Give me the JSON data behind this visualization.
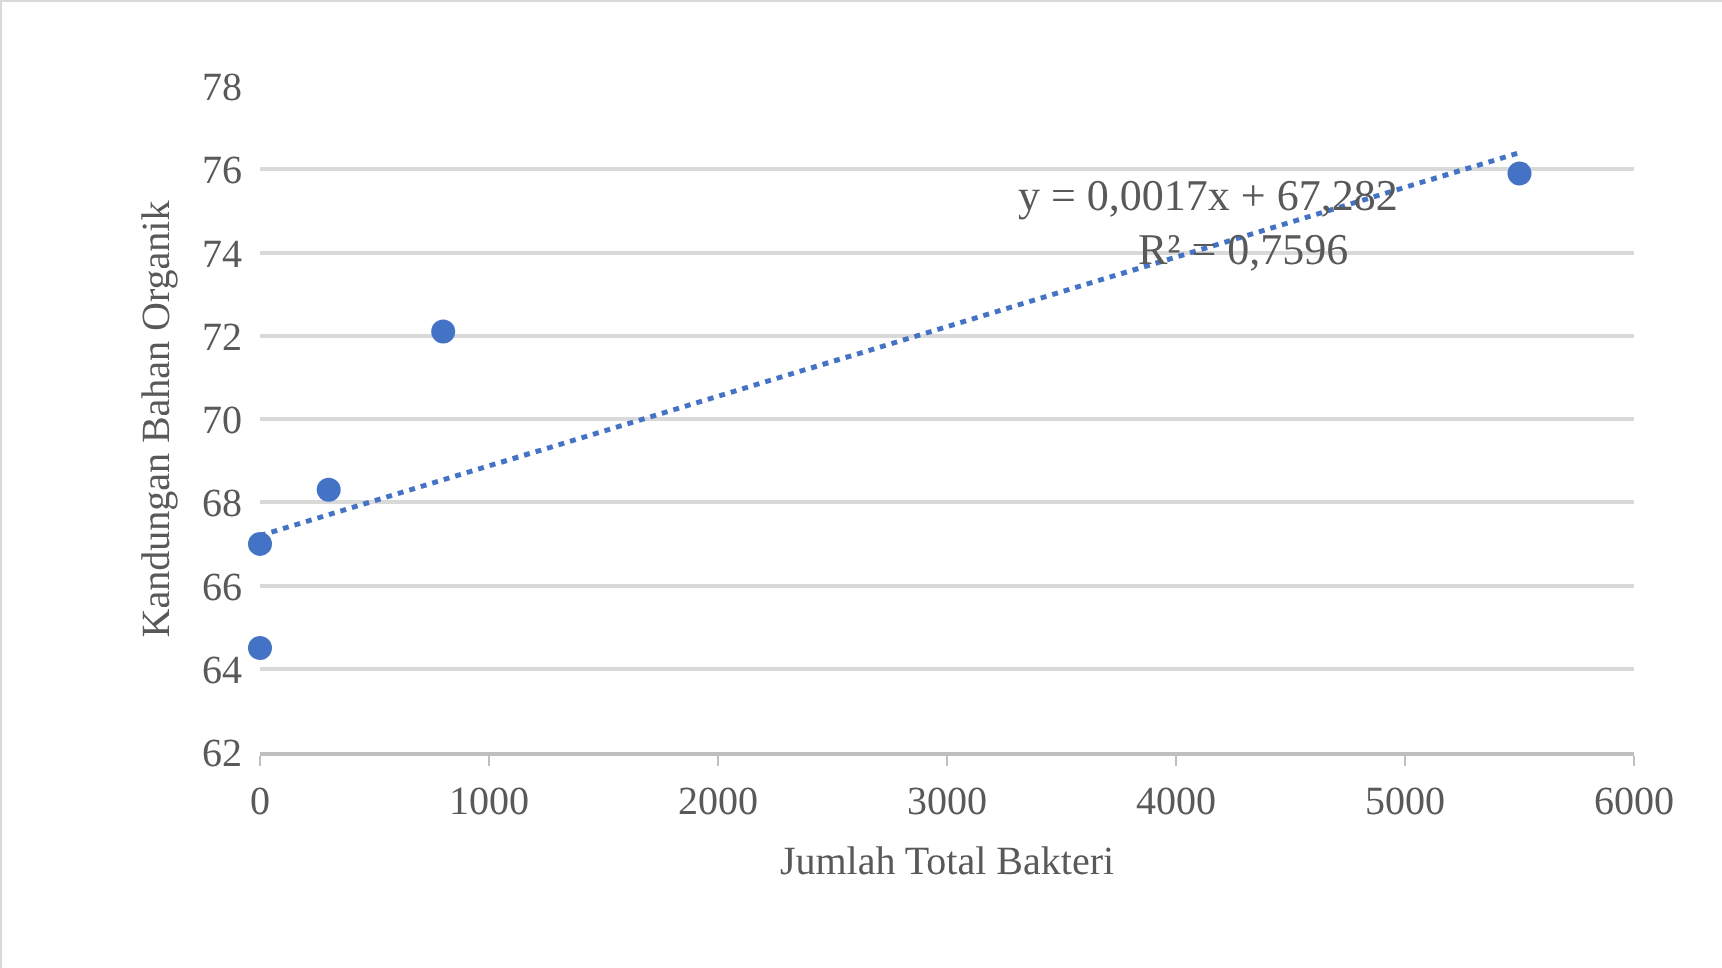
{
  "chart_data": {
    "type": "scatter",
    "xlabel": "Jumlah Total Bakteri",
    "ylabel": "Kandungan Bahan Organik",
    "xlim": [
      0,
      6000
    ],
    "xticks": [
      0,
      1000,
      2000,
      3000,
      4000,
      5000,
      6000
    ],
    "ylim": [
      62,
      78
    ],
    "yticks": [
      62,
      64,
      66,
      68,
      70,
      72,
      74,
      76,
      78
    ],
    "grid": "y",
    "series": [
      {
        "type": "scatter",
        "color": "#4472c4",
        "marker": "circle",
        "x": [
          0,
          0,
          300,
          800,
          5500
        ],
        "values": [
          67,
          64.5,
          68.3,
          72.1,
          75.9
        ]
      },
      {
        "type": "line",
        "color": "#4472c4",
        "marker": "none",
        "line_style": "dotted",
        "x": [
          0,
          5500
        ],
        "values": [
          67.2,
          76.4
        ]
      }
    ],
    "annotations": [
      "y = 0,0017x + 67,282",
      "R² = 0,7596"
    ]
  }
}
